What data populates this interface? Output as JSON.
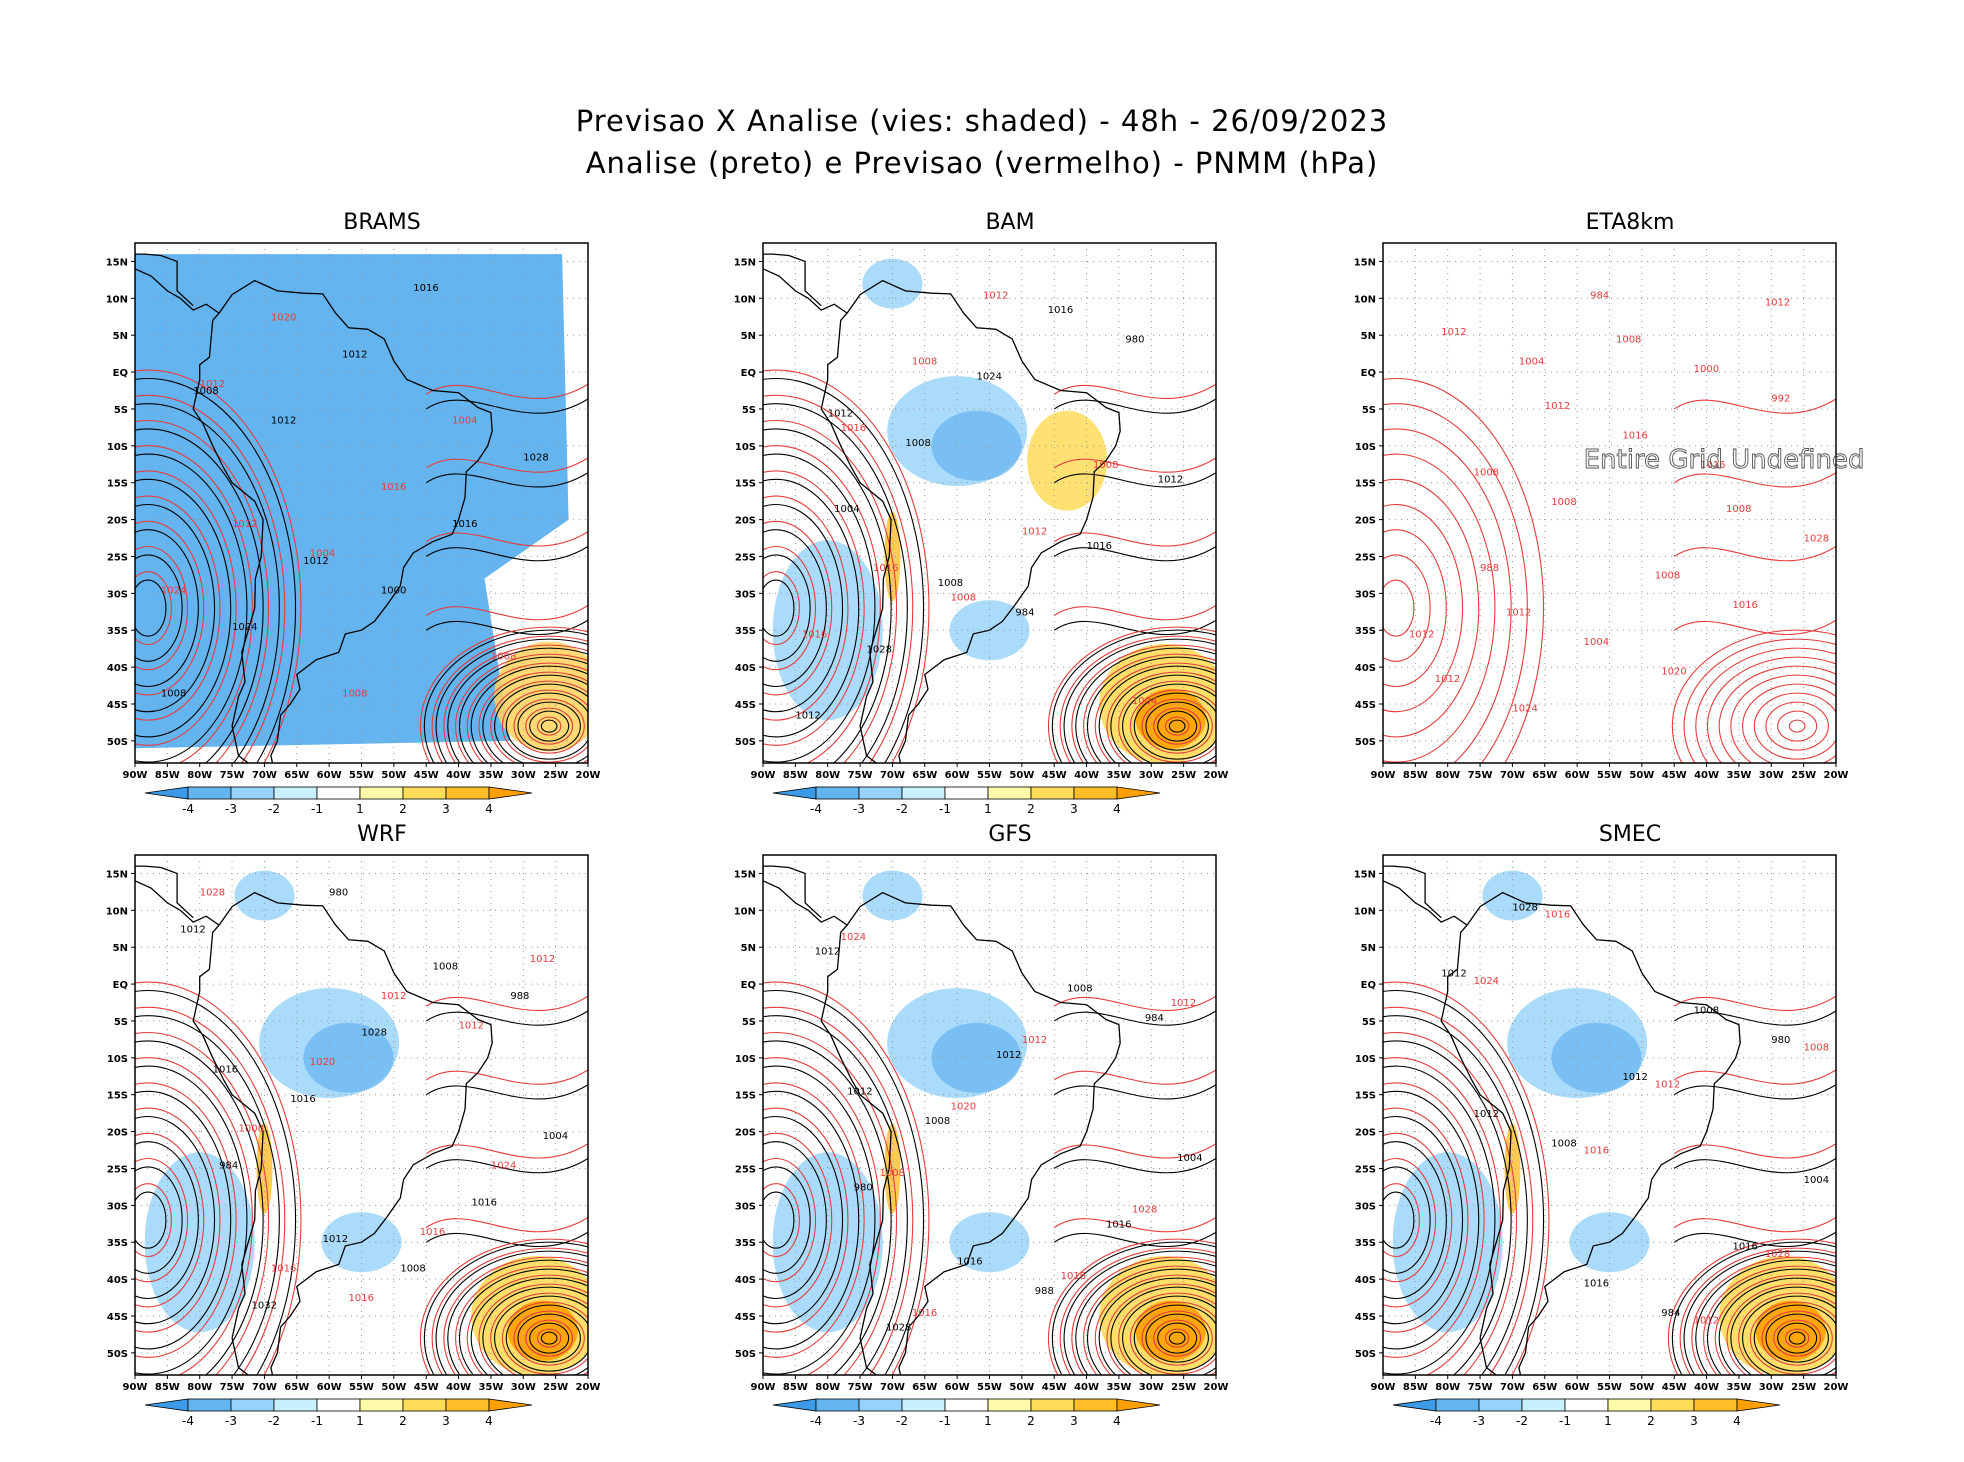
{
  "header": {
    "title_line1": "Previsao X Analise (vies: shaded) - 48h - 26/09/2023",
    "title_line2": "Analise (preto) e Previsao (vermelho) - PNMM (hPa)"
  },
  "axes": {
    "lat_labels": [
      "15N",
      "10N",
      "5N",
      "EQ",
      "5S",
      "10S",
      "15S",
      "20S",
      "25S",
      "30S",
      "35S",
      "40S",
      "45S",
      "50S"
    ],
    "lon_labels": [
      "90W",
      "85W",
      "80W",
      "75W",
      "70W",
      "65W",
      "60W",
      "55W",
      "50W",
      "45W",
      "40W",
      "35W",
      "30W",
      "25W",
      "20W"
    ]
  },
  "colorbar": {
    "ticks": [
      "-4",
      "-3",
      "-2",
      "-1",
      "1",
      "2",
      "3",
      "4"
    ],
    "colors": [
      "#3c9ae6",
      "#64b4f0",
      "#96d2fa",
      "#c8f0ff",
      "#ffffff",
      "#fffaaa",
      "#ffdc5a",
      "#ffbe28",
      "#ffa000"
    ]
  },
  "colors": {
    "analysis": "#000000",
    "forecast": "#e63c3c",
    "bias_negative": "#64b4f0",
    "bias_positive": "#ffd25a",
    "ocean": "#ffffff"
  },
  "panels": [
    {
      "title": "BRAMS",
      "bias": "negative",
      "labels_red": [
        "1012",
        "1008",
        "1004",
        "1024",
        "1020",
        "1016",
        "1008",
        "1012",
        "1004"
      ],
      "labels_black": [
        "1008",
        "1012",
        "1016",
        "1028",
        "1024",
        "1012",
        "1016",
        "1008",
        "1012",
        "1000"
      ]
    },
    {
      "title": "BAM",
      "bias": "mixed",
      "labels_red": [
        "1016",
        "1012",
        "1008",
        "1016",
        "1008",
        "1012",
        "1004",
        "1016",
        "1008"
      ],
      "labels_black": [
        "1012",
        "1008",
        "1016",
        "1012",
        "1028",
        "1024",
        "1016",
        "1012",
        "1008",
        "984",
        "980",
        "1004"
      ]
    },
    {
      "title": "ETA8km",
      "bias": "undefined",
      "message": "Entire Grid Undefined",
      "labels_red": [
        "1012",
        "1008",
        "1008",
        "1012",
        "1012",
        "1008",
        "1012",
        "1008",
        "1004",
        "1000",
        "1028",
        "1024",
        "1016",
        "1016",
        "1012",
        "1008",
        "1020",
        "992",
        "988",
        "984",
        "1016",
        "1012",
        "1004"
      ]
    },
    {
      "title": "WRF",
      "bias": "mixed",
      "labels_red": [
        "1016",
        "1012",
        "1024",
        "1028",
        "1020",
        "1016",
        "1012",
        "1008",
        "1016",
        "1012"
      ],
      "labels_black": [
        "1016",
        "1012",
        "1008",
        "1004",
        "1032",
        "1028",
        "1016",
        "1012",
        "1016",
        "1008",
        "988",
        "984",
        "980"
      ]
    },
    {
      "title": "GFS",
      "bias": "mixed",
      "labels_red": [
        "1016",
        "1012",
        "1028",
        "1024",
        "1020",
        "1016",
        "1012",
        "1008"
      ],
      "labels_black": [
        "1012",
        "1016",
        "1008",
        "1004",
        "1028",
        "1012",
        "1016",
        "1012",
        "1008",
        "988",
        "984",
        "980"
      ]
    },
    {
      "title": "SMEC",
      "bias": "mixed",
      "labels_red": [
        "1016",
        "1012",
        "1028",
        "1024",
        "1016",
        "1012",
        "1008"
      ],
      "labels_black": [
        "1012",
        "1016",
        "1008",
        "1004",
        "1028",
        "1012",
        "1016",
        "1012",
        "1008",
        "984",
        "980"
      ]
    }
  ]
}
